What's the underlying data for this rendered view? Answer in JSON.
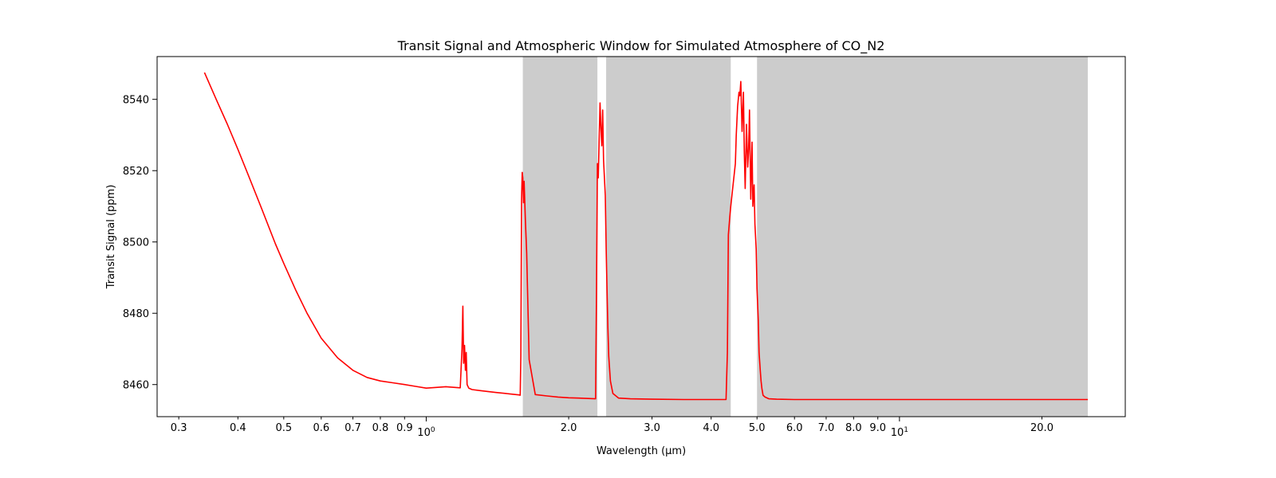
{
  "chart_data": {
    "type": "line",
    "title": "Transit Signal and Atmospheric Window for Simulated Atmosphere of CO_N2",
    "xlabel": "Wavelength (μm)",
    "ylabel": "Transit Signal (ppm)",
    "xscale": "log",
    "xlim": [
      0.27,
      30
    ],
    "ylim": [
      8451,
      8552
    ],
    "grid": false,
    "x_ticks": [
      {
        "value": 0.3,
        "label": "0.3"
      },
      {
        "value": 0.4,
        "label": "0.4"
      },
      {
        "value": 0.5,
        "label": "0.5"
      },
      {
        "value": 0.6,
        "label": "0.6"
      },
      {
        "value": 0.7,
        "label": "0.7"
      },
      {
        "value": 0.8,
        "label": "0.8"
      },
      {
        "value": 0.9,
        "label": "0.9"
      },
      {
        "value": 1.0,
        "label": "10",
        "sup": "0"
      },
      {
        "value": 2.0,
        "label": "2.0"
      },
      {
        "value": 3.0,
        "label": "3.0"
      },
      {
        "value": 4.0,
        "label": "4.0"
      },
      {
        "value": 5.0,
        "label": "5.0"
      },
      {
        "value": 6.0,
        "label": "6.0"
      },
      {
        "value": 7.0,
        "label": "7.0"
      },
      {
        "value": 8.0,
        "label": "8.0"
      },
      {
        "value": 9.0,
        "label": "9.0"
      },
      {
        "value": 10.0,
        "label": "10",
        "sup": "1"
      },
      {
        "value": 20.0,
        "label": "20.0"
      }
    ],
    "y_ticks": [
      8460,
      8480,
      8500,
      8520,
      8540
    ],
    "shaded_windows": [
      {
        "x0": 1.6,
        "x1": 2.3
      },
      {
        "x0": 2.4,
        "x1": 4.4
      },
      {
        "x0": 5.0,
        "x1": 25.0
      }
    ],
    "series": [
      {
        "color": "#ff0000",
        "x": [
          0.34,
          0.36,
          0.38,
          0.4,
          0.42,
          0.45,
          0.48,
          0.5,
          0.53,
          0.56,
          0.6,
          0.65,
          0.7,
          0.75,
          0.8,
          0.85,
          0.9,
          0.95,
          1.0,
          1.05,
          1.1,
          1.15,
          1.18,
          1.19,
          1.195,
          1.2,
          1.205,
          1.21,
          1.215,
          1.22,
          1.23,
          1.24,
          1.25,
          1.3,
          1.4,
          1.5,
          1.57,
          1.58,
          1.585,
          1.59,
          1.595,
          1.6,
          1.605,
          1.61,
          1.62,
          1.63,
          1.65,
          1.7,
          1.8,
          1.9,
          2.0,
          2.1,
          2.2,
          2.28,
          2.29,
          2.3,
          2.31,
          2.32,
          2.33,
          2.34,
          2.35,
          2.36,
          2.37,
          2.38,
          2.39,
          2.4,
          2.41,
          2.42,
          2.43,
          2.45,
          2.48,
          2.55,
          2.7,
          3.0,
          3.5,
          4.0,
          4.3,
          4.33,
          4.35,
          4.38,
          4.4,
          4.45,
          4.5,
          4.52,
          4.55,
          4.58,
          4.6,
          4.62,
          4.65,
          4.68,
          4.7,
          4.72,
          4.75,
          4.78,
          4.8,
          4.82,
          4.85,
          4.88,
          4.9,
          4.93,
          4.95,
          4.98,
          5.0,
          5.03,
          5.05,
          5.08,
          5.1,
          5.12,
          5.15,
          5.2,
          5.3,
          5.5,
          6.0,
          7.0,
          8.0,
          10.0,
          12.0,
          15.0,
          20.0,
          25.0
        ],
        "values": [
          8547.5,
          8540,
          8533,
          8526,
          8519,
          8509,
          8499.5,
          8494,
          8486.5,
          8480,
          8473,
          8467.5,
          8464,
          8462,
          8461,
          8460.5,
          8460,
          8459.5,
          8459,
          8459.2,
          8459.4,
          8459.2,
          8459.1,
          8470,
          8482,
          8466,
          8471,
          8464,
          8469,
          8460,
          8459,
          8458.8,
          8458.6,
          8458.3,
          8457.8,
          8457.4,
          8457.1,
          8457,
          8468,
          8512,
          8519.5,
          8518,
          8511,
          8517,
          8506,
          8497,
          8467,
          8457.2,
          8456.8,
          8456.5,
          8456.3,
          8456.2,
          8456.1,
          8456,
          8487,
          8522,
          8518,
          8529,
          8539,
          8532,
          8527,
          8537,
          8523,
          8518,
          8513,
          8498,
          8487,
          8476,
          8468,
          8461,
          8457.5,
          8456.2,
          8456,
          8455.9,
          8455.8,
          8455.8,
          8455.8,
          8469,
          8502,
          8507,
          8510,
          8516,
          8522,
          8530,
          8538,
          8542,
          8541,
          8545,
          8531,
          8542,
          8525,
          8515,
          8533,
          8521,
          8526,
          8537,
          8512,
          8528,
          8510,
          8516,
          8505,
          8498,
          8487,
          8478,
          8469,
          8464,
          8461,
          8459,
          8457,
          8456.5,
          8456,
          8455.9,
          8455.8,
          8455.8,
          8455.8,
          8455.8,
          8455.8,
          8455.8,
          8455.8,
          8455.8
        ]
      }
    ]
  }
}
